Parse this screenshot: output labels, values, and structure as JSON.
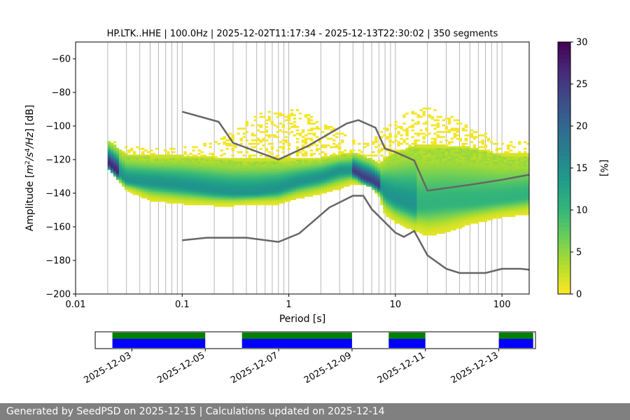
{
  "chart_data": [
    {
      "type": "heatmap",
      "title": "HP.LTK..HHE | 100.0Hz | 2025-12-02T11:17:34 - 2025-12-13T22:30:02 | 350 segments",
      "xlabel": "Period [s]",
      "ylabel": "Amplitude [m²/s⁴/Hz] [dB]",
      "x_scale": "log",
      "xlim": [
        0.01,
        180
      ],
      "ylim": [
        -200,
        -50
      ],
      "x_tick_labels": [
        "0.01",
        "0.1",
        "1",
        "10",
        "100"
      ],
      "y_ticks": [
        -200,
        -180,
        -160,
        -140,
        -120,
        -100,
        -80,
        -60
      ],
      "y_tick_labels": [
        "−200",
        "−180",
        "−160",
        "−140",
        "−120",
        "−100",
        "−80",
        "−60"
      ],
      "grid": "vertical",
      "colorbar": {
        "label": "[%]",
        "range": [
          0,
          30
        ],
        "ticks": [
          0,
          5,
          10,
          15,
          20,
          25,
          30
        ],
        "colormap": "viridis_r"
      },
      "density_ridge": {
        "period": [
          0.02,
          0.03,
          0.05,
          0.1,
          0.2,
          0.3,
          0.5,
          0.8,
          1.2,
          2,
          3,
          4,
          5,
          6,
          7,
          8,
          10,
          15,
          20,
          30,
          50,
          100,
          180
        ],
        "mode_db": [
          -122,
          -133,
          -134,
          -136,
          -139,
          -140,
          -140,
          -138,
          -134,
          -131,
          -127,
          -127,
          -131,
          -133,
          -136,
          -140,
          -144,
          -148,
          -147,
          -146,
          -146,
          -144,
          -142
        ],
        "lower_db": [
          -124,
          -138,
          -144,
          -146,
          -147,
          -147,
          -146,
          -146,
          -143,
          -140,
          -137,
          -134,
          -134,
          -136,
          -142,
          -152,
          -157,
          -162,
          -165,
          -163,
          -158,
          -154,
          -152
        ],
        "upper_db": [
          -110,
          -118,
          -119,
          -119,
          -120,
          -121,
          -121,
          -121,
          -121,
          -120,
          -118,
          -117,
          -119,
          -121,
          -124,
          -120,
          -117,
          -113,
          -113,
          -113,
          -114,
          -118,
          -118
        ],
        "outer_upper_db": [
          -108,
          -113,
          -113,
          -113,
          -110,
          -103,
          -94,
          -88,
          -90,
          -97,
          -104,
          -108,
          -110,
          -111,
          -104,
          -100,
          -96,
          -91,
          -89,
          -93,
          -100,
          -110,
          -110
        ]
      },
      "series": [
        {
          "type": "line",
          "period": [
            0.1,
            0.22,
            0.3,
            0.8,
            1.5,
            3.5,
            4.5,
            6.5,
            8,
            10,
            15,
            20,
            50,
            100,
            180
          ],
          "db": [
            -91.5,
            -97.5,
            -110,
            -120,
            -112,
            -98.5,
            -96.5,
            -101,
            -113.5,
            -115.5,
            -120.5,
            -138.5,
            -135,
            -132,
            -129
          ]
        },
        {
          "type": "line",
          "period": [
            0.1,
            0.17,
            0.4,
            0.8,
            1.25,
            2.4,
            4,
            5,
            6,
            10,
            12,
            15,
            20,
            30,
            40,
            70,
            100,
            150,
            180
          ],
          "db": [
            -168,
            -166.5,
            -166.5,
            -169,
            -164,
            -148.5,
            -141.5,
            -141.5,
            -149.5,
            -163.5,
            -166,
            -162.5,
            -177,
            -185,
            -187.5,
            -187.5,
            -185,
            -185,
            -185.5
          ]
        }
      ]
    },
    {
      "type": "timeline",
      "x_tick_labels": [
        "2025-12-03",
        "2025-12-05",
        "2025-12-07",
        "2025-12-09",
        "2025-12-11",
        "2025-12-13"
      ],
      "xlim": [
        "2025-12-02",
        "2025-12-14"
      ],
      "data_color": "#0000ff",
      "segments_color": "#008000",
      "data_intervals": [
        [
          "2025-12-02T11:17",
          "2025-12-04T23:59"
        ],
        [
          "2025-12-06T00:00",
          "2025-12-07T23:59"
        ],
        [
          "2025-12-08T00:00",
          "2025-12-08T23:59"
        ],
        [
          "2025-12-10T00:00",
          "2025-12-10T23:59"
        ],
        [
          "2025-12-13T00:00",
          "2025-12-13T22:30"
        ]
      ]
    }
  ],
  "footer": {
    "text": "Generated by SeedPSD on 2025-12-15 | Calculations updated on 2025-12-14"
  },
  "colors": {
    "line": "#666666",
    "grid": "#b0b0b0",
    "footer_bg": "#808080"
  }
}
